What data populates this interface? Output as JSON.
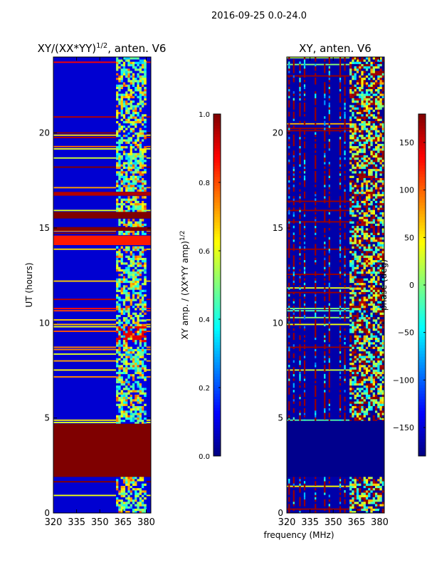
{
  "figure_title": "2016-09-25 0.0-24.0",
  "xlabel": "frequency (MHz)",
  "colors": {
    "jet": [
      "#00007f",
      "#0000ff",
      "#007fff",
      "#00ffff",
      "#7fff7f",
      "#ffff00",
      "#ff7f00",
      "#ff0000",
      "#7f0000"
    ],
    "frame": "#000000"
  },
  "chart_data": [
    {
      "type": "heatmap",
      "title_main": "XY/(XX*YY)",
      "title_sup": "1/2",
      "title_tail": ", anten. V6",
      "ylabel": "UT (hours)",
      "xlim": [
        320,
        383
      ],
      "ylim": [
        0,
        24
      ],
      "xticks": [
        320,
        335,
        350,
        365,
        380
      ],
      "xtick_labels": [
        "320",
        "335",
        "350",
        "365",
        "380"
      ],
      "yticks": [
        0,
        5,
        10,
        15,
        20
      ],
      "ytick_labels": [
        "0",
        "5",
        "10",
        "15",
        "20"
      ],
      "colorbar": {
        "label_main": "XY amp. / (XX*YY amp)",
        "label_sup": "1/2",
        "range": [
          0.0,
          1.0
        ],
        "ticks": [
          0.0,
          0.2,
          0.4,
          0.6,
          0.8,
          1.0
        ],
        "tick_labels": [
          "0.0",
          "0.2",
          "0.4",
          "0.6",
          "0.8",
          "1.0"
        ]
      },
      "background_value": 0.08,
      "features": [
        {
          "kind": "block",
          "t0": 1.9,
          "t1": 4.7,
          "value": 1.0
        },
        {
          "kind": "block",
          "t0": 15.5,
          "t1": 15.85,
          "value": 1.0
        },
        {
          "kind": "block",
          "t0": 14.85,
          "t1": 15.05,
          "value": 1.0
        },
        {
          "kind": "block",
          "t0": 16.7,
          "t1": 16.9,
          "value": 0.95
        },
        {
          "kind": "block",
          "t0": 14.1,
          "t1": 14.6,
          "value": 0.85
        },
        {
          "kind": "active_band",
          "f0": 360,
          "f1": 379,
          "t0": 0,
          "t1": 24
        },
        {
          "kind": "hot_rows",
          "t0": 9.0,
          "t1": 9.8,
          "f0": 360,
          "f1": 379,
          "value": 0.9
        }
      ]
    },
    {
      "type": "heatmap",
      "title_main": "XY, anten. V6",
      "title_sup": "",
      "title_tail": "",
      "ylabel": "",
      "xlim": [
        320,
        383
      ],
      "ylim": [
        0,
        24
      ],
      "xticks": [
        320,
        335,
        350,
        365,
        380
      ],
      "xtick_labels": [
        "320",
        "335",
        "350",
        "365",
        "380"
      ],
      "yticks": [
        0,
        5,
        10,
        15,
        20
      ],
      "ytick_labels": [
        "0",
        "5",
        "10",
        "15",
        "20"
      ],
      "colorbar": {
        "label_main": "phase (deg)",
        "label_sup": "",
        "range": [
          -180,
          180
        ],
        "ticks": [
          -150,
          -100,
          -50,
          0,
          50,
          100,
          150
        ],
        "tick_labels": [
          "−150",
          "−100",
          "−50",
          "0",
          "50",
          "100",
          "150"
        ]
      },
      "background_value": -165,
      "features": [
        {
          "kind": "block",
          "t0": 1.9,
          "t1": 4.7,
          "value": -175
        },
        {
          "kind": "block",
          "t0": 4.7,
          "t1": 4.85,
          "value": -175
        },
        {
          "kind": "active_band",
          "f0": 360,
          "f1": 383,
          "t0": 0,
          "t1": 24
        },
        {
          "kind": "red_stripes",
          "freqs": [
            321,
            324,
            328,
            331,
            338,
            344,
            347,
            354,
            357
          ],
          "value": 170
        }
      ]
    }
  ]
}
